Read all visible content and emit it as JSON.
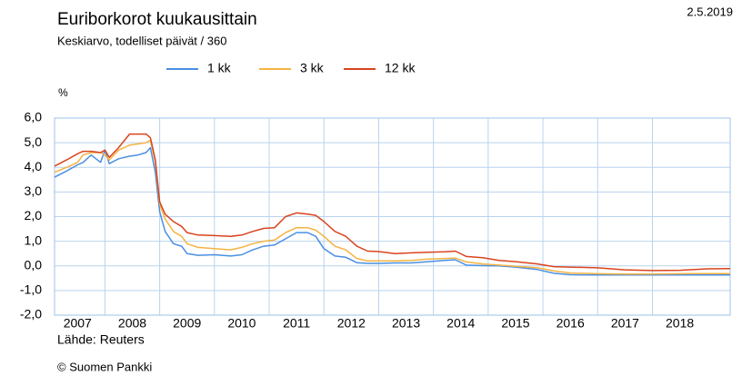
{
  "chart_data": {
    "type": "line",
    "title": "Euriborkorot kuukausittain",
    "subtitle": "Keskiarvo, todelliset päivät / 360",
    "date": "2.5.2019",
    "y_unit": "%",
    "source": "Lähde: Reuters",
    "copyright": "© Suomen Pankki",
    "x": [
      2007.08,
      2007.3,
      2007.5,
      2007.6,
      2007.75,
      2007.92,
      2008.0,
      2008.08,
      2008.25,
      2008.45,
      2008.6,
      2008.75,
      2008.83,
      2008.92,
      2009.0,
      2009.1,
      2009.25,
      2009.4,
      2009.5,
      2009.7,
      2010.0,
      2010.3,
      2010.5,
      2010.7,
      2010.9,
      2011.1,
      2011.3,
      2011.5,
      2011.7,
      2011.85,
      2012.0,
      2012.2,
      2012.4,
      2012.6,
      2012.8,
      2013.0,
      2013.3,
      2013.6,
      2013.9,
      2014.2,
      2014.4,
      2014.6,
      2014.9,
      2015.2,
      2015.5,
      2015.9,
      2016.2,
      2016.5,
      2017.0,
      2017.5,
      2018.0,
      2018.5,
      2019.0,
      2019.42
    ],
    "series": [
      {
        "name": "1 kk",
        "color": "#4a8fe2",
        "values": [
          3.6,
          3.85,
          4.1,
          4.2,
          4.5,
          4.2,
          4.7,
          4.15,
          4.35,
          4.45,
          4.5,
          4.6,
          4.8,
          3.8,
          2.2,
          1.4,
          0.9,
          0.8,
          0.5,
          0.43,
          0.45,
          0.4,
          0.45,
          0.65,
          0.8,
          0.85,
          1.1,
          1.35,
          1.35,
          1.2,
          0.7,
          0.4,
          0.35,
          0.13,
          0.1,
          0.1,
          0.12,
          0.12,
          0.17,
          0.22,
          0.25,
          0.03,
          0.01,
          0.0,
          -0.05,
          -0.15,
          -0.3,
          -0.36,
          -0.37,
          -0.37,
          -0.37,
          -0.37,
          -0.37,
          -0.37
        ]
      },
      {
        "name": "3 kk",
        "color": "#f5b342",
        "values": [
          3.8,
          4.0,
          4.2,
          4.5,
          4.6,
          4.6,
          4.5,
          4.3,
          4.7,
          4.9,
          4.95,
          5.0,
          5.1,
          4.2,
          2.5,
          1.9,
          1.4,
          1.2,
          0.9,
          0.75,
          0.7,
          0.65,
          0.75,
          0.9,
          1.0,
          1.05,
          1.35,
          1.55,
          1.55,
          1.45,
          1.2,
          0.8,
          0.65,
          0.3,
          0.2,
          0.2,
          0.2,
          0.22,
          0.28,
          0.3,
          0.32,
          0.16,
          0.08,
          0.03,
          -0.02,
          -0.08,
          -0.2,
          -0.29,
          -0.32,
          -0.33,
          -0.33,
          -0.32,
          -0.31,
          -0.31
        ]
      },
      {
        "name": "12 kk",
        "color": "#d9441f",
        "values": [
          4.05,
          4.3,
          4.55,
          4.65,
          4.65,
          4.6,
          4.7,
          4.4,
          4.8,
          5.35,
          5.35,
          5.35,
          5.2,
          4.3,
          2.6,
          2.1,
          1.8,
          1.6,
          1.35,
          1.25,
          1.23,
          1.2,
          1.25,
          1.4,
          1.52,
          1.55,
          2.0,
          2.15,
          2.1,
          2.05,
          1.8,
          1.4,
          1.2,
          0.8,
          0.6,
          0.58,
          0.5,
          0.53,
          0.55,
          0.57,
          0.6,
          0.38,
          0.33,
          0.22,
          0.17,
          0.08,
          -0.03,
          -0.05,
          -0.08,
          -0.16,
          -0.19,
          -0.18,
          -0.12,
          -0.11
        ]
      }
    ],
    "xlim": [
      2007.08,
      2019.42
    ],
    "xticks": [
      2007,
      2008,
      2009,
      2010,
      2011,
      2012,
      2013,
      2014,
      2015,
      2016,
      2017,
      2018
    ],
    "ylim": [
      -2,
      6
    ],
    "yticks": [
      {
        "value": -2,
        "label": "-2,0"
      },
      {
        "value": -1,
        "label": "-1,0"
      },
      {
        "value": 0,
        "label": "0,0"
      },
      {
        "value": 1,
        "label": "1,0"
      },
      {
        "value": 2,
        "label": "2,0"
      },
      {
        "value": 3,
        "label": "3,0"
      },
      {
        "value": 4,
        "label": "4,0"
      },
      {
        "value": 5,
        "label": "5,0"
      },
      {
        "value": 6,
        "label": "6,0"
      }
    ],
    "grid": true
  }
}
